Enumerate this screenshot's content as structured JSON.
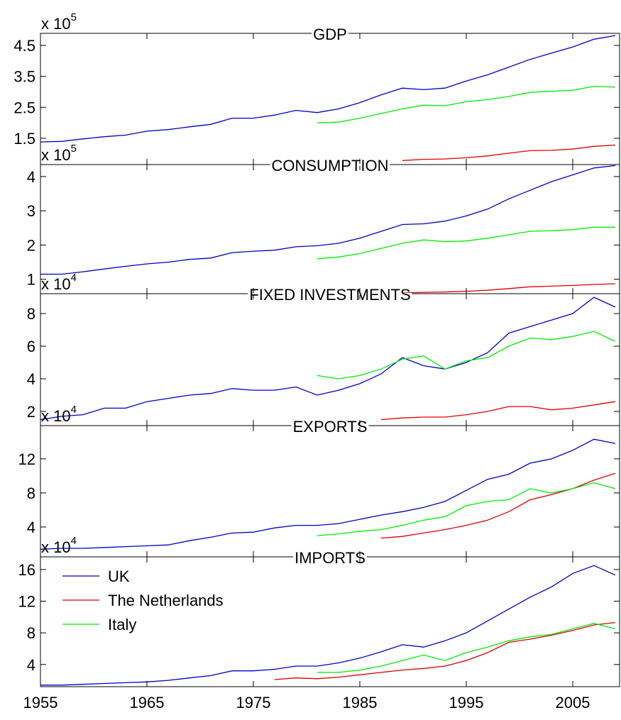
{
  "chart_data": [
    {
      "type": "line",
      "title": "GDP",
      "multiplier": "x 10",
      "multiplier_exponent": "5",
      "x": [
        1955,
        1957,
        1959,
        1961,
        1963,
        1965,
        1967,
        1969,
        1971,
        1973,
        1975,
        1977,
        1979,
        1981,
        1983,
        1985,
        1987,
        1989,
        1991,
        1993,
        1995,
        1997,
        1999,
        2001,
        2003,
        2005,
        2007,
        2009
      ],
      "xlim": [
        1955,
        2009.4
      ],
      "xticks": [
        1955,
        1965,
        1975,
        1985,
        1995,
        2005
      ],
      "ylim": [
        0.65,
        4.89
      ],
      "yticks": [
        1.5,
        2.5,
        3.5,
        4.5
      ],
      "series": [
        {
          "color": "#0000cc",
          "values": [
            1.38,
            1.4,
            1.48,
            1.55,
            1.6,
            1.73,
            1.78,
            1.87,
            1.95,
            2.15,
            2.15,
            2.25,
            2.4,
            2.33,
            2.45,
            2.65,
            2.9,
            3.12,
            3.07,
            3.12,
            3.35,
            3.55,
            3.8,
            4.05,
            4.25,
            4.45,
            4.7,
            4.82
          ]
        },
        {
          "color": "#dd0000",
          "values": [
            null,
            null,
            null,
            null,
            null,
            null,
            null,
            null,
            null,
            null,
            null,
            null,
            null,
            null,
            null,
            null,
            null,
            0.78,
            0.82,
            0.83,
            0.87,
            0.93,
            1.02,
            1.1,
            1.11,
            1.15,
            1.24,
            1.28
          ]
        },
        {
          "color": "#00ee00",
          "values": [
            null,
            null,
            null,
            null,
            null,
            null,
            null,
            null,
            null,
            null,
            null,
            null,
            null,
            2.0,
            2.02,
            2.15,
            2.3,
            2.45,
            2.57,
            2.55,
            2.68,
            2.75,
            2.85,
            2.98,
            3.02,
            3.05,
            3.18,
            3.15
          ]
        }
      ]
    },
    {
      "type": "line",
      "title": "CONSUMPTION",
      "multiplier": "x 10",
      "multiplier_exponent": "5",
      "x": [
        1955,
        1957,
        1959,
        1961,
        1963,
        1965,
        1967,
        1969,
        1971,
        1973,
        1975,
        1977,
        1979,
        1981,
        1983,
        1985,
        1987,
        1989,
        1991,
        1993,
        1995,
        1997,
        1999,
        2001,
        2003,
        2005,
        2007,
        2009
      ],
      "xlim": [
        1955,
        2009.4
      ],
      "xticks": [
        1955,
        1965,
        1975,
        1985,
        1995,
        2005
      ],
      "ylim": [
        0.58,
        4.35
      ],
      "yticks": [
        1,
        2,
        3,
        4
      ],
      "series": [
        {
          "color": "#0000cc",
          "values": [
            1.15,
            1.15,
            1.22,
            1.3,
            1.38,
            1.45,
            1.5,
            1.58,
            1.62,
            1.78,
            1.82,
            1.85,
            1.95,
            1.98,
            2.05,
            2.2,
            2.4,
            2.6,
            2.62,
            2.7,
            2.85,
            3.05,
            3.35,
            3.6,
            3.85,
            4.05,
            4.25,
            4.32
          ]
        },
        {
          "color": "#dd0000",
          "values": [
            null,
            null,
            null,
            null,
            null,
            null,
            null,
            null,
            null,
            null,
            null,
            null,
            null,
            null,
            null,
            null,
            null,
            0.6,
            0.62,
            0.63,
            0.65,
            0.68,
            0.73,
            0.78,
            0.8,
            0.82,
            0.85,
            0.87
          ]
        },
        {
          "color": "#00ee00",
          "values": [
            null,
            null,
            null,
            null,
            null,
            null,
            null,
            null,
            null,
            null,
            null,
            null,
            null,
            1.6,
            1.65,
            1.75,
            1.9,
            2.05,
            2.15,
            2.1,
            2.12,
            2.2,
            2.3,
            2.4,
            2.42,
            2.45,
            2.52,
            2.52
          ]
        }
      ]
    },
    {
      "type": "line",
      "title": "FIXED INVESTMENTS",
      "multiplier": "x 10",
      "multiplier_exponent": "4",
      "x": [
        1955,
        1957,
        1959,
        1961,
        1963,
        1965,
        1967,
        1969,
        1971,
        1973,
        1975,
        1977,
        1979,
        1981,
        1983,
        1985,
        1987,
        1989,
        1991,
        1993,
        1995,
        1997,
        1999,
        2001,
        2003,
        2005,
        2007,
        2009
      ],
      "xlim": [
        1955,
        2009.4
      ],
      "xticks": [
        1955,
        1965,
        1975,
        1985,
        1995,
        2005
      ],
      "ylim": [
        1.13,
        9.22
      ],
      "yticks": [
        2,
        4,
        6,
        8
      ],
      "series": [
        {
          "color": "#0000cc",
          "values": [
            1.5,
            1.7,
            1.8,
            2.2,
            2.2,
            2.6,
            2.8,
            3.0,
            3.1,
            3.4,
            3.3,
            3.3,
            3.5,
            3.0,
            3.3,
            3.7,
            4.3,
            5.3,
            4.8,
            4.6,
            5.0,
            5.6,
            6.8,
            7.2,
            7.6,
            8.0,
            9.0,
            8.4
          ]
        },
        {
          "color": "#dd0000",
          "values": [
            null,
            null,
            null,
            null,
            null,
            null,
            null,
            null,
            null,
            null,
            null,
            null,
            null,
            null,
            null,
            null,
            1.5,
            1.6,
            1.65,
            1.65,
            1.8,
            2.0,
            2.3,
            2.3,
            2.1,
            2.2,
            2.4,
            2.6
          ]
        },
        {
          "color": "#00ee00",
          "values": [
            null,
            null,
            null,
            null,
            null,
            null,
            null,
            null,
            null,
            null,
            null,
            null,
            null,
            4.2,
            4.0,
            4.2,
            4.6,
            5.2,
            5.4,
            4.6,
            5.1,
            5.3,
            6.0,
            6.5,
            6.4,
            6.6,
            6.9,
            6.3
          ]
        }
      ]
    },
    {
      "type": "line",
      "title": "EXPORTS",
      "multiplier": "x 10",
      "multiplier_exponent": "4",
      "x": [
        1955,
        1957,
        1959,
        1961,
        1963,
        1965,
        1967,
        1969,
        1971,
        1973,
        1975,
        1977,
        1979,
        1981,
        1983,
        1985,
        1987,
        1989,
        1991,
        1993,
        1995,
        1997,
        1999,
        2001,
        2003,
        2005,
        2007,
        2009
      ],
      "xlim": [
        1955,
        2009.4
      ],
      "xticks": [
        1955,
        1965,
        1975,
        1985,
        1995,
        2005
      ],
      "ylim": [
        0.5,
        15.9
      ],
      "yticks": [
        4,
        8,
        12
      ],
      "series": [
        {
          "color": "#0000cc",
          "values": [
            1.4,
            1.5,
            1.5,
            1.6,
            1.7,
            1.8,
            1.9,
            2.4,
            2.8,
            3.3,
            3.4,
            3.9,
            4.2,
            4.2,
            4.4,
            4.9,
            5.4,
            5.8,
            6.3,
            7.0,
            8.3,
            9.6,
            10.2,
            11.5,
            12.0,
            13.0,
            14.3,
            13.8
          ]
        },
        {
          "color": "#dd0000",
          "values": [
            null,
            null,
            null,
            null,
            null,
            null,
            null,
            null,
            null,
            null,
            null,
            null,
            null,
            null,
            null,
            null,
            2.7,
            2.9,
            3.3,
            3.7,
            4.2,
            4.8,
            5.8,
            7.2,
            7.8,
            8.5,
            9.5,
            10.3
          ]
        },
        {
          "color": "#00ee00",
          "values": [
            null,
            null,
            null,
            null,
            null,
            null,
            null,
            null,
            null,
            null,
            null,
            null,
            null,
            3.0,
            3.2,
            3.5,
            3.7,
            4.2,
            4.8,
            5.2,
            6.5,
            7.0,
            7.2,
            8.5,
            8.0,
            8.5,
            9.2,
            8.5
          ]
        }
      ]
    },
    {
      "type": "line",
      "title": "IMPORTS",
      "multiplier": "x 10",
      "multiplier_exponent": "4",
      "legend": "upper left",
      "x": [
        1955,
        1957,
        1959,
        1961,
        1963,
        1965,
        1967,
        1969,
        1971,
        1973,
        1975,
        1977,
        1979,
        1981,
        1983,
        1985,
        1987,
        1989,
        1991,
        1993,
        1995,
        1997,
        1999,
        2001,
        2003,
        2005,
        2007,
        2009
      ],
      "xlim": [
        1955,
        2009.4
      ],
      "xticks": [
        1955,
        1965,
        1975,
        1985,
        1995,
        2005
      ],
      "ylim": [
        1.2,
        17.6
      ],
      "yticks": [
        4,
        8,
        12,
        16
      ],
      "series": [
        {
          "name": "UK",
          "color": "#0000cc",
          "values": [
            1.4,
            1.4,
            1.5,
            1.6,
            1.7,
            1.8,
            2.0,
            2.3,
            2.6,
            3.2,
            3.2,
            3.4,
            3.8,
            3.8,
            4.2,
            4.8,
            5.6,
            6.5,
            6.2,
            7.0,
            8.0,
            9.5,
            11.0,
            12.5,
            13.8,
            15.5,
            16.5,
            15.3
          ]
        },
        {
          "name": "The Netherlands",
          "color": "#dd0000",
          "values": [
            null,
            null,
            null,
            null,
            null,
            null,
            null,
            null,
            null,
            null,
            null,
            2.1,
            2.3,
            2.2,
            2.4,
            2.7,
            3.0,
            3.3,
            3.5,
            3.8,
            4.5,
            5.5,
            6.8,
            7.2,
            7.7,
            8.3,
            9.0,
            9.3
          ]
        },
        {
          "name": "Italy",
          "color": "#00ee00",
          "values": [
            null,
            null,
            null,
            null,
            null,
            null,
            null,
            null,
            null,
            null,
            null,
            null,
            null,
            3.0,
            3.0,
            3.3,
            3.8,
            4.5,
            5.2,
            4.5,
            5.5,
            6.2,
            7.0,
            7.5,
            7.8,
            8.5,
            9.2,
            8.5
          ]
        }
      ]
    }
  ]
}
